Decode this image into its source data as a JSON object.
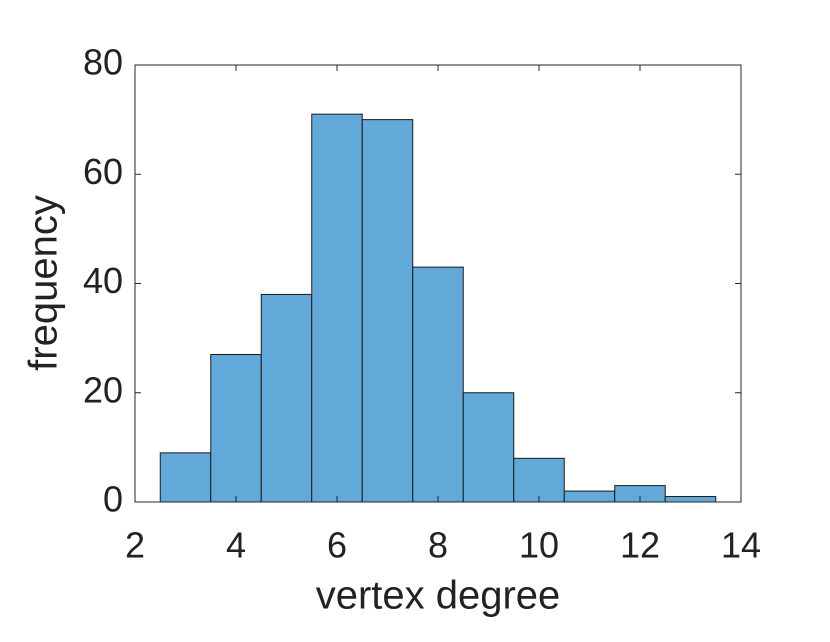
{
  "chart_data": {
    "type": "histogram",
    "xlabel": "vertex degree",
    "ylabel": "frequency",
    "bins": [
      2.5,
      3.5,
      4.5,
      5.5,
      6.5,
      7.5,
      8.5,
      9.5,
      10.5,
      11.5,
      12.5,
      13.5
    ],
    "values": [
      9,
      27,
      38,
      71,
      70,
      43,
      20,
      8,
      2,
      3,
      1
    ],
    "color": "#62a8d8",
    "xlim": [
      2,
      14
    ],
    "xticks": [
      2,
      4,
      6,
      8,
      10,
      12,
      14
    ],
    "ylim": [
      0,
      80
    ],
    "yticks": [
      0,
      20,
      40,
      60,
      80
    ],
    "grid": false
  }
}
